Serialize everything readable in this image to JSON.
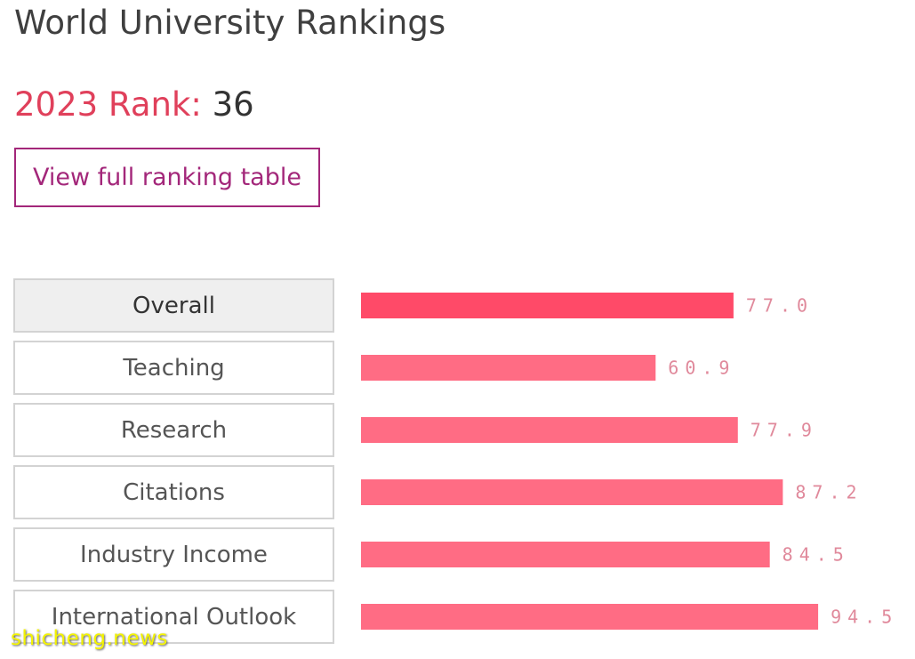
{
  "header": {
    "title": "World University Rankings",
    "rank_label": "2023 Rank:",
    "rank_value": "36",
    "full_table_label": "View full ranking table"
  },
  "metrics": [
    {
      "label": "Overall",
      "active": true
    },
    {
      "label": "Teaching",
      "active": false
    },
    {
      "label": "Research",
      "active": false
    },
    {
      "label": "Citations",
      "active": false
    },
    {
      "label": "Industry Income",
      "active": false
    },
    {
      "label": "International Outlook",
      "active": false
    }
  ],
  "chart_data": {
    "type": "bar",
    "orientation": "horizontal",
    "categories": [
      "Overall",
      "Teaching",
      "Research",
      "Citations",
      "Industry Income",
      "International Outlook"
    ],
    "values": [
      77.0,
      60.9,
      77.9,
      87.2,
      84.5,
      94.5
    ],
    "value_labels": [
      "77.0",
      "60.9",
      "77.9",
      "87.2",
      "84.5",
      "94.5"
    ],
    "xlim": [
      0,
      100
    ],
    "grid": false,
    "colors": {
      "active_bar": "#ff4a68",
      "bar": "#ff6c84",
      "value_label": "#e0899b"
    }
  },
  "watermark": "shicheng.news"
}
